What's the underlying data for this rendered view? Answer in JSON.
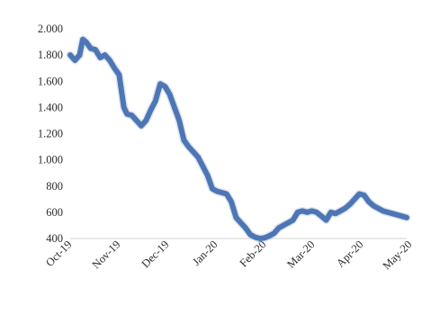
{
  "chart_data": {
    "type": "line",
    "title": "",
    "xlabel": "",
    "ylabel": "",
    "x_tick_labels": [
      "Oct-19",
      "Nov-19",
      "Dec-19",
      "Jan-20",
      "Feb-20",
      "Mar-20",
      "Apr-20",
      "May-20"
    ],
    "y_tick_labels": [
      "2.000",
      "1.800",
      "1.600",
      "1.400",
      "1.200",
      "1.000",
      "800",
      "600",
      "400"
    ],
    "y_ticks": [
      2000,
      1800,
      1600,
      1400,
      1200,
      1000,
      800,
      600,
      400
    ],
    "ylim": [
      400,
      2000
    ],
    "xlim": [
      "2019-10-01",
      "2020-05-01"
    ],
    "grid": false,
    "legend": "none",
    "colors": {
      "series": "#4d76b5",
      "shadow": "#8aa3c8"
    },
    "series": [
      {
        "x": [
          "2019-10-01",
          "2019-10-04",
          "2019-10-07",
          "2019-10-09",
          "2019-10-11",
          "2019-10-14",
          "2019-10-17",
          "2019-10-20",
          "2019-10-23",
          "2019-10-26",
          "2019-10-29",
          "2019-11-01",
          "2019-11-04",
          "2019-11-06",
          "2019-11-09",
          "2019-11-12",
          "2019-11-15",
          "2019-11-18",
          "2019-11-21",
          "2019-11-24",
          "2019-11-27",
          "2019-11-30",
          "2019-12-03",
          "2019-12-06",
          "2019-12-09",
          "2019-12-12",
          "2019-12-15",
          "2019-12-18",
          "2019-12-21",
          "2019-12-24",
          "2019-12-27",
          "2019-12-30",
          "2020-01-02",
          "2020-01-05",
          "2020-01-08",
          "2020-01-11",
          "2020-01-14",
          "2020-01-17",
          "2020-01-20",
          "2020-01-23",
          "2020-01-26",
          "2020-01-29",
          "2020-02-01",
          "2020-02-04",
          "2020-02-07",
          "2020-02-10",
          "2020-02-13",
          "2020-02-16",
          "2020-02-19",
          "2020-02-22",
          "2020-02-25",
          "2020-02-28",
          "2020-03-02",
          "2020-03-05",
          "2020-03-08",
          "2020-03-11",
          "2020-03-14",
          "2020-03-17",
          "2020-03-20",
          "2020-03-23",
          "2020-03-26",
          "2020-03-29",
          "2020-04-01",
          "2020-04-04",
          "2020-04-07",
          "2020-04-10",
          "2020-04-13",
          "2020-04-16",
          "2020-04-19",
          "2020-04-22",
          "2020-04-25",
          "2020-04-28",
          "2020-05-01"
        ],
        "values": [
          1800,
          1760,
          1800,
          1920,
          1900,
          1850,
          1840,
          1780,
          1800,
          1760,
          1700,
          1650,
          1400,
          1350,
          1340,
          1300,
          1260,
          1300,
          1380,
          1450,
          1580,
          1560,
          1500,
          1400,
          1300,
          1150,
          1100,
          1060,
          1020,
          950,
          880,
          780,
          760,
          750,
          740,
          680,
          560,
          520,
          480,
          430,
          410,
          400,
          405,
          420,
          440,
          480,
          500,
          520,
          540,
          600,
          610,
          600,
          610,
          600,
          570,
          540,
          600,
          590,
          610,
          630,
          660,
          700,
          740,
          730,
          680,
          650,
          630,
          610,
          600,
          590,
          580,
          570,
          560
        ]
      }
    ]
  }
}
